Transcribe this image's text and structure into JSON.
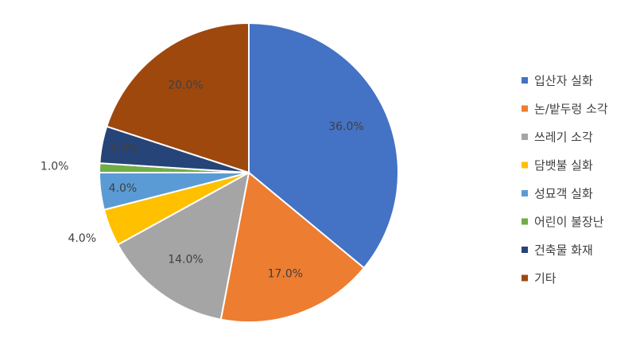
{
  "chart_data": {
    "type": "pie",
    "categories": [
      "입산자 실화",
      "논/밭두렁 소각",
      "쓰레기 소각",
      "담뱃불 실화",
      "성묘객 실화",
      "어린이 불장난",
      "건축물 화재",
      "기타"
    ],
    "values": [
      36,
      17,
      14,
      4,
      4,
      1,
      4,
      20
    ],
    "value_labels": [
      "36.0%",
      "17.0%",
      "14.0%",
      "4.0%",
      "4.0%",
      "1.0%",
      "4.0%",
      "20.0%"
    ],
    "colors": [
      "#4472c4",
      "#ed7d31",
      "#a5a5a5",
      "#ffc000",
      "#5b9bd5",
      "#70ad47",
      "#264478",
      "#9e480e"
    ],
    "legend": "right"
  }
}
